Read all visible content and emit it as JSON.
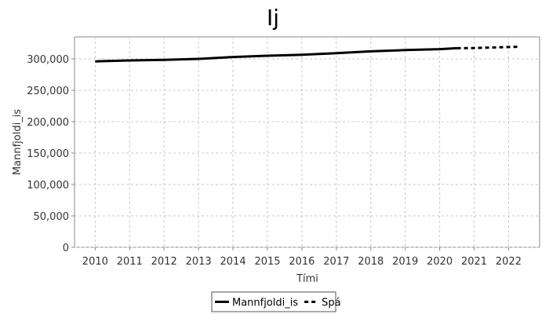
{
  "chart_data": {
    "type": "line",
    "title": "Ij",
    "xlabel": "Tími",
    "ylabel": "Mannfjoldi_is",
    "xlim": [
      2009.4,
      2022.9
    ],
    "ylim": [
      0,
      335000
    ],
    "x_ticks": [
      2010,
      2011,
      2012,
      2013,
      2014,
      2015,
      2016,
      2017,
      2018,
      2019,
      2020,
      2021,
      2022
    ],
    "y_ticks": [
      0,
      50000,
      100000,
      150000,
      200000,
      250000,
      300000
    ],
    "grid": true,
    "legend_position": "bottom-center",
    "series": [
      {
        "name": "Mannfjoldi_is",
        "style": "solid",
        "color": "#000000",
        "x": [
          2010,
          2011,
          2012,
          2013,
          2014,
          2015,
          2016,
          2017,
          2018,
          2019,
          2020,
          2020.5
        ],
        "y": [
          296000,
          297500,
          298500,
          300000,
          303000,
          305000,
          306500,
          309000,
          312000,
          314000,
          315500,
          317000
        ]
      },
      {
        "name": "Spá",
        "style": "dashed",
        "color": "#000000",
        "x": [
          2020.5,
          2021,
          2022,
          2022.3
        ],
        "y": [
          317000,
          317300,
          318900,
          319200
        ]
      }
    ]
  }
}
